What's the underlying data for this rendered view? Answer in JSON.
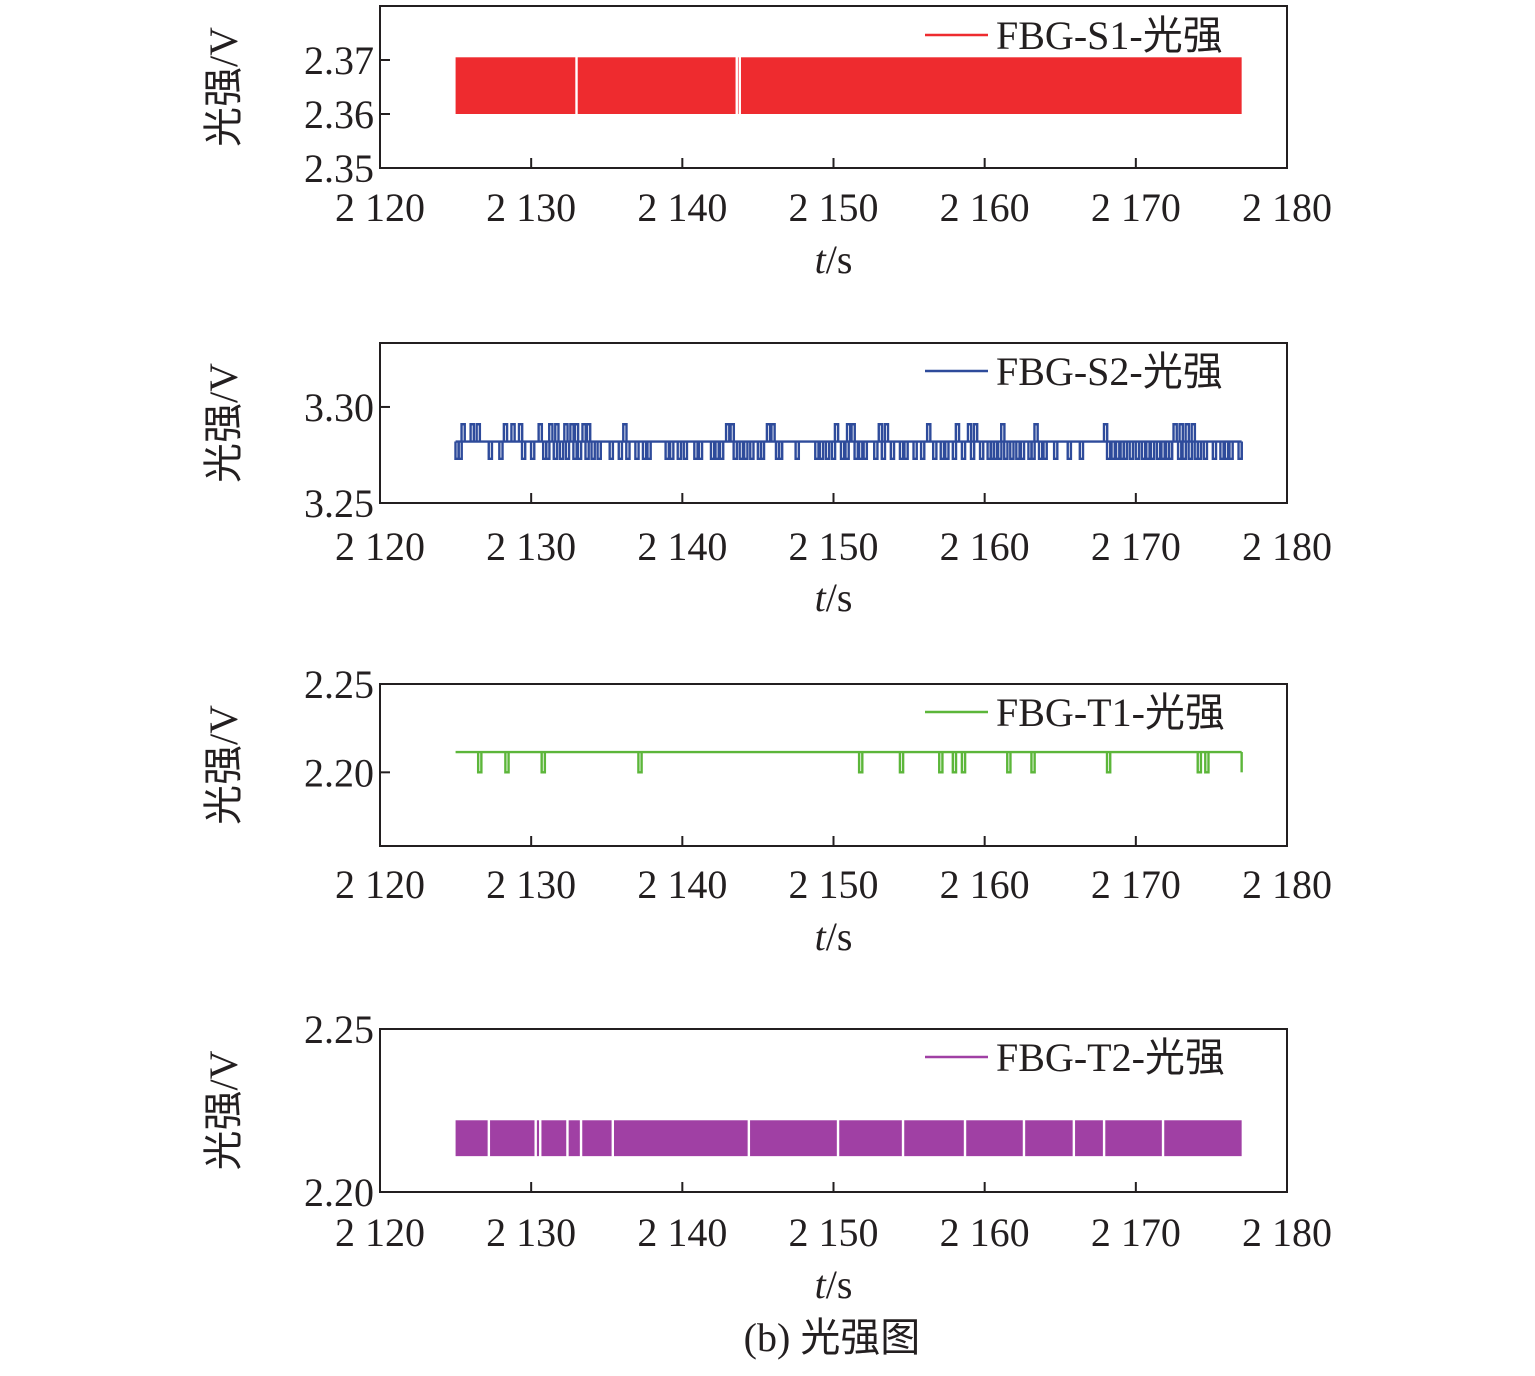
{
  "caption": "(b) 光强图",
  "chart_data": [
    {
      "type": "line",
      "legend": [
        "FBG-S1-光强"
      ],
      "legend_position": "top-right",
      "xlabel_var": "t",
      "xlabel_unit": "/s",
      "ylabel": "光强/V",
      "xlim": [
        2120,
        2180
      ],
      "ylim": [
        2.35,
        2.38
      ],
      "xticks": [
        2120,
        2130,
        2140,
        2150,
        2160,
        2170,
        2180
      ],
      "xtick_labels": [
        "2 120",
        "2 130",
        "2 140",
        "2 150",
        "2 160",
        "2 170",
        "2 180"
      ],
      "yticks": [
        2.35,
        2.36,
        2.37
      ],
      "ytick_labels": [
        "2.35",
        "2.36",
        "2.37"
      ],
      "grid": false,
      "series": [
        {
          "name": "FBG-S1-光强",
          "color": "#ee2b2f",
          "mode": "band",
          "t_start": 2125,
          "t_end": 2177,
          "low": 2.36,
          "high": 2.3705,
          "gaps": [
            2133.0,
            2143.6,
            2143.8
          ]
        }
      ]
    },
    {
      "type": "line",
      "legend": [
        "FBG-S2-光强"
      ],
      "legend_position": "top-right",
      "xlabel_var": "t",
      "xlabel_unit": "/s",
      "ylabel": "光强/V",
      "xlim": [
        2120,
        2180
      ],
      "ylim": [
        3.25,
        3.3333
      ],
      "xticks": [
        2120,
        2130,
        2140,
        2150,
        2160,
        2170,
        2180
      ],
      "xtick_labels": [
        "2 120",
        "2 130",
        "2 140",
        "2 150",
        "2 160",
        "2 170",
        "2 180"
      ],
      "yticks": [
        3.25,
        3.3
      ],
      "ytick_labels": [
        "3.25",
        "3.30"
      ],
      "grid": false,
      "series": [
        {
          "name": "FBG-S2-光强",
          "color": "#2e4b9b",
          "mode": "spikes",
          "t_start": 2125,
          "t_end": 2177,
          "base": 3.282,
          "up": 3.291,
          "down": 3.273,
          "up_times": [
            2125.5,
            2126.1,
            2126.5,
            2128.3,
            2128.8,
            2129.3,
            2130.6,
            2131.3,
            2131.7,
            2132.3,
            2132.7,
            2133.0,
            2133.5,
            2133.8,
            2136.2,
            2143.0,
            2143.3,
            2145.7,
            2146.0,
            2150.2,
            2151.0,
            2151.3,
            2153.1,
            2153.5,
            2156.3,
            2158.2,
            2159.0,
            2159.4,
            2161.2,
            2163.4,
            2168.0,
            2172.6,
            2173.0,
            2173.4,
            2173.8
          ],
          "down_times": [
            2125.1,
            2125.3,
            2127.3,
            2128.0,
            2129.5,
            2130.1,
            2130.9,
            2131.1,
            2131.6,
            2132.0,
            2132.4,
            2132.9,
            2133.2,
            2133.7,
            2134.1,
            2134.5,
            2135.3,
            2135.9,
            2136.4,
            2137.0,
            2137.5,
            2137.8,
            2139.0,
            2139.3,
            2139.8,
            2140.2,
            2140.9,
            2141.2,
            2142.0,
            2142.3,
            2142.6,
            2143.5,
            2143.9,
            2144.2,
            2144.6,
            2145.1,
            2145.3,
            2146.3,
            2146.5,
            2147.6,
            2148.9,
            2149.2,
            2149.6,
            2150.0,
            2150.6,
            2150.9,
            2151.5,
            2151.8,
            2152.1,
            2152.8,
            2153.3,
            2153.9,
            2154.5,
            2154.8,
            2155.4,
            2155.9,
            2156.7,
            2157.2,
            2157.5,
            2158.0,
            2158.6,
            2159.2,
            2159.8,
            2160.3,
            2160.5,
            2160.7,
            2161.0,
            2161.4,
            2161.8,
            2162.2,
            2162.5,
            2163.0,
            2163.2,
            2163.7,
            2164.0,
            2164.7,
            2165.6,
            2166.4,
            2168.2,
            2168.5,
            2168.8,
            2169.1,
            2169.3,
            2169.7,
            2170.1,
            2170.5,
            2170.8,
            2171.1,
            2171.5,
            2171.8,
            2172.1,
            2172.3,
            2172.9,
            2173.2,
            2173.6,
            2174.0,
            2174.2,
            2174.6,
            2175.2,
            2175.7,
            2176.0,
            2176.3,
            2176.9
          ]
        }
      ]
    },
    {
      "type": "line",
      "legend": [
        "FBG-T1-光强"
      ],
      "legend_position": "top-right",
      "xlabel_var": "t",
      "xlabel_unit": "/s",
      "ylabel": "光强/V",
      "xlim": [
        2120,
        2180
      ],
      "ylim": [
        2.1583,
        2.25
      ],
      "xticks": [
        2120,
        2130,
        2140,
        2150,
        2160,
        2170,
        2180
      ],
      "xtick_labels": [
        "2 120",
        "2 130",
        "2 140",
        "2 150",
        "2 160",
        "2 170",
        "2 180"
      ],
      "yticks": [
        2.2,
        2.25
      ],
      "ytick_labels": [
        "2.20",
        "2.25"
      ],
      "grid": false,
      "series": [
        {
          "name": "FBG-T1-光强",
          "color": "#5cb63a",
          "mode": "spikes",
          "t_start": 2125,
          "t_end": 2177,
          "base": 2.2115,
          "up": null,
          "down": 2.2,
          "up_times": [],
          "down_times": [
            2126.6,
            2128.4,
            2130.8,
            2137.2,
            2151.8,
            2154.5,
            2157.1,
            2158.0,
            2158.6,
            2161.6,
            2163.2,
            2168.2,
            2174.2,
            2174.7
          ]
        }
      ]
    },
    {
      "type": "line",
      "legend": [
        "FBG-T2-光强"
      ],
      "legend_position": "top-right",
      "xlabel_var": "t",
      "xlabel_unit": "/s",
      "ylabel": "光强/V",
      "xlim": [
        2120,
        2180
      ],
      "ylim": [
        2.2,
        2.25
      ],
      "xticks": [
        2120,
        2130,
        2140,
        2150,
        2160,
        2170,
        2180
      ],
      "xtick_labels": [
        "2 120",
        "2 130",
        "2 140",
        "2 150",
        "2 160",
        "2 170",
        "2 180"
      ],
      "yticks": [
        2.2,
        2.25
      ],
      "ytick_labels": [
        "2.20",
        "2.25"
      ],
      "grid": false,
      "series": [
        {
          "name": "FBG-T2-光强",
          "color": "#a040a4",
          "mode": "band",
          "t_start": 2125,
          "t_end": 2177,
          "low": 2.211,
          "high": 2.222,
          "gaps": [
            2127.2,
            2130.3,
            2130.6,
            2132.4,
            2133.3,
            2135.4,
            2144.4,
            2150.3,
            2154.6,
            2158.7,
            2162.6,
            2165.9,
            2167.9,
            2171.8
          ]
        }
      ]
    }
  ]
}
